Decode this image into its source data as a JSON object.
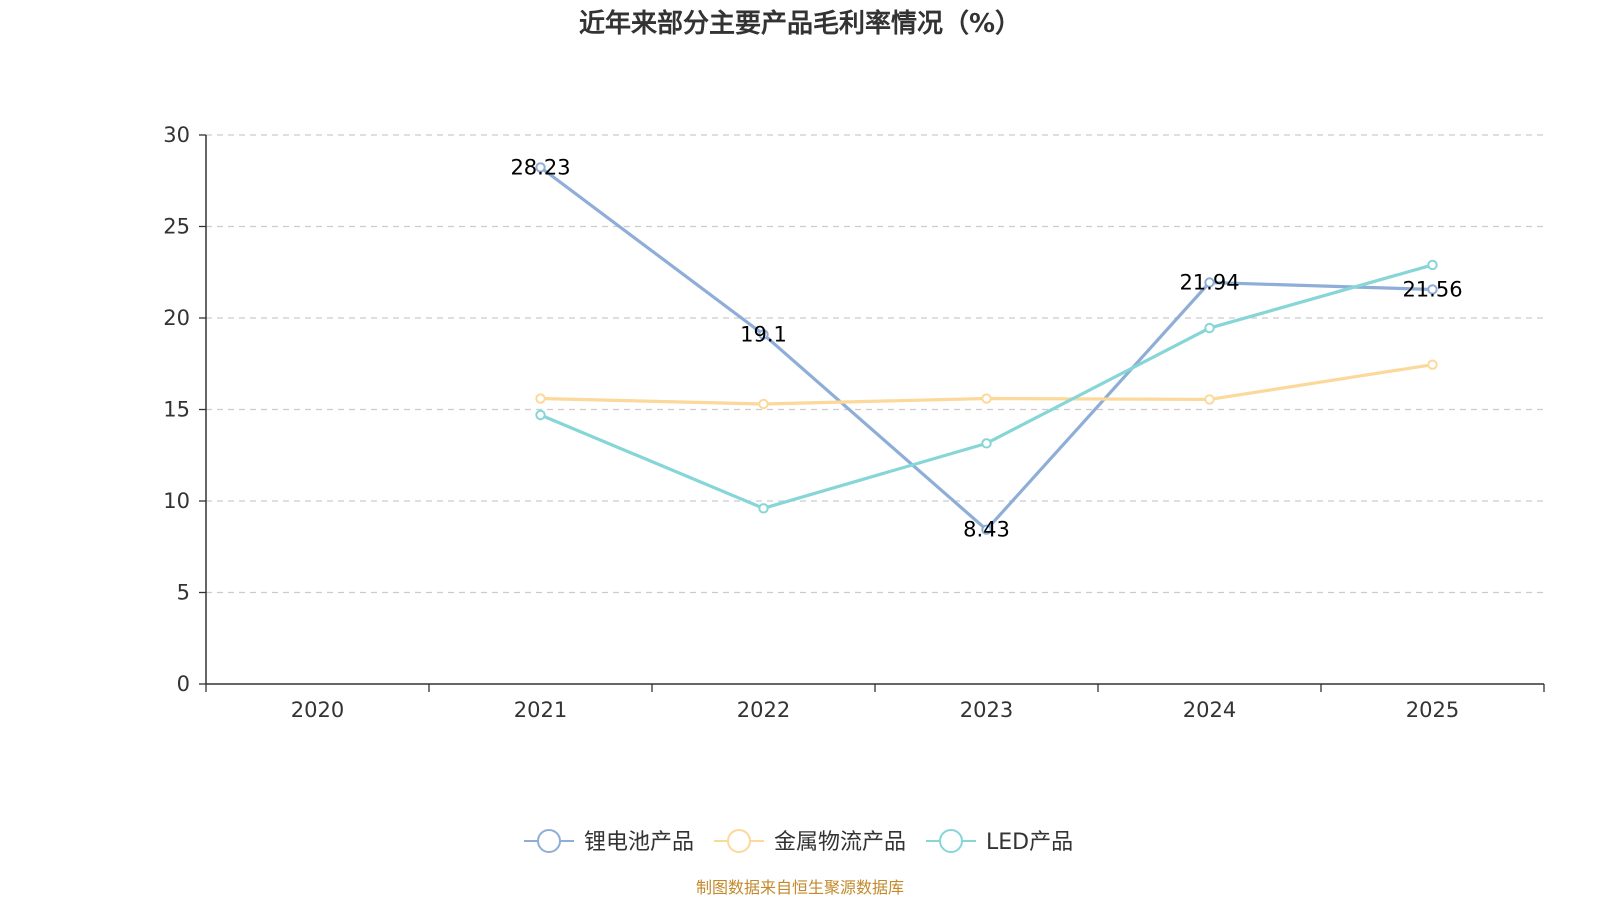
{
  "chart_data": {
    "type": "line",
    "title": "近年来部分主要产品毛利率情况（%）",
    "categories": [
      "2020",
      "2021",
      "2022",
      "2023",
      "2024",
      "2025"
    ],
    "ylim": [
      0,
      30
    ],
    "yticks": [
      0,
      5,
      10,
      15,
      20,
      25,
      30
    ],
    "grid": true,
    "legend_position": "bottom-center",
    "series": [
      {
        "name": "锂电池产品",
        "color": "#8eaed8",
        "values": [
          null,
          28.23,
          19.1,
          8.43,
          21.94,
          21.56
        ],
        "data_labels": [
          null,
          "28.23",
          "19.1",
          "8.43",
          "21.94",
          "21.56"
        ]
      },
      {
        "name": "金属物流产品",
        "color": "#fcd89a",
        "values": [
          null,
          15.6,
          15.3,
          15.6,
          15.55,
          17.45
        ]
      },
      {
        "name": "LED产品",
        "color": "#86d6d8",
        "values": [
          null,
          14.7,
          9.6,
          13.15,
          19.45,
          22.9
        ]
      }
    ]
  },
  "source_text": "制图数据来自恒生聚源数据库",
  "source_color": "#c28a2c"
}
